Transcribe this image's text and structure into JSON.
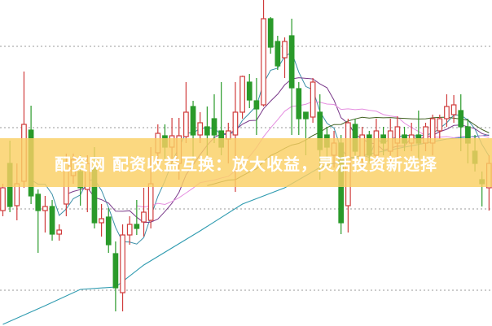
{
  "banner": {
    "text": "配资网 配资收益互换：放大收益，灵活投资新选择"
  },
  "chart_data": {
    "type": "candlestick",
    "title": "",
    "xlabel": "",
    "ylabel": "",
    "ylim": [
      0,
      401
    ],
    "grid": {
      "horizontal": true,
      "style": "dotted",
      "levels": [
        44,
        144,
        244,
        344
      ]
    },
    "colors": {
      "up": "#d03c3c",
      "down": "#2a9a2a",
      "grid": "#999999",
      "banner": "#f9cf64",
      "ma5": "#3a8fa8",
      "ma10": "#7a3a8a",
      "ma20": "#e58ee0",
      "ma30": "#3f5f1f",
      "ma_long": "#2f9bb0"
    },
    "candles": [
      [
        142,
        170,
        175,
        135
      ],
      [
        200,
        147,
        228,
        140
      ],
      [
        148,
        175,
        200,
        130
      ],
      [
        178,
        248,
        313,
        170
      ],
      [
        241,
        160,
        271,
        150
      ],
      [
        162,
        142,
        168,
        90
      ],
      [
        142,
        147,
        160,
        115
      ],
      [
        147,
        113,
        155,
        105
      ],
      [
        113,
        118,
        125,
        105
      ],
      [
        150,
        200,
        212,
        135
      ],
      [
        185,
        205,
        212,
        175
      ],
      [
        190,
        170,
        210,
        148
      ],
      [
        168,
        200,
        210,
        140
      ],
      [
        195,
        127,
        220,
        120
      ],
      [
        127,
        132,
        150,
        110
      ],
      [
        134,
        100,
        145,
        90
      ],
      [
        89,
        47,
        104,
        18
      ],
      [
        41,
        112,
        125,
        18
      ],
      [
        112,
        125,
        135,
        100
      ],
      [
        125,
        120,
        155,
        112
      ],
      [
        128,
        140,
        170,
        110
      ],
      [
        130,
        175,
        220,
        120
      ],
      [
        213,
        237,
        248,
        200
      ],
      [
        234,
        220,
        248,
        205
      ],
      [
        220,
        234,
        256,
        200
      ],
      [
        200,
        234,
        256,
        180
      ],
      [
        233,
        263,
        300,
        225
      ],
      [
        270,
        235,
        277,
        205
      ],
      [
        235,
        250,
        263,
        225
      ],
      [
        245,
        235,
        270,
        210
      ],
      [
        255,
        235,
        285,
        225
      ],
      [
        240,
        220,
        300,
        210
      ],
      [
        230,
        240,
        250,
        200
      ],
      [
        235,
        263,
        300,
        165
      ],
      [
        263,
        307,
        308,
        255
      ],
      [
        300,
        278,
        310,
        268
      ],
      [
        277,
        267,
        305,
        235
      ],
      [
        272,
        378,
        401,
        270
      ],
      [
        378,
        343,
        380,
        335
      ],
      [
        350,
        320,
        357,
        315
      ],
      [
        330,
        350,
        355,
        305
      ],
      [
        357,
        293,
        378,
        235
      ],
      [
        292,
        255,
        300,
        235
      ],
      [
        263,
        255,
        263,
        210
      ],
      [
        257,
        300,
        305,
        250
      ],
      [
        263,
        217,
        285,
        180
      ],
      [
        235,
        220,
        245,
        205
      ],
      [
        210,
        225,
        240,
        195
      ],
      [
        225,
        127,
        235,
        113
      ],
      [
        148,
        250,
        255,
        115
      ],
      [
        248,
        215,
        255,
        200
      ],
      [
        205,
        235,
        245,
        195
      ],
      [
        235,
        210,
        240,
        200
      ],
      [
        210,
        240,
        255,
        195
      ],
      [
        235,
        225,
        245,
        210
      ],
      [
        215,
        240,
        255,
        200
      ],
      [
        225,
        245,
        258,
        205
      ],
      [
        235,
        225,
        245,
        215
      ],
      [
        225,
        235,
        250,
        215
      ],
      [
        235,
        225,
        265,
        205
      ],
      [
        225,
        245,
        250,
        215
      ],
      [
        225,
        255,
        260,
        210
      ],
      [
        240,
        255,
        260,
        230
      ],
      [
        255,
        270,
        285,
        245
      ],
      [
        260,
        272,
        284,
        250
      ],
      [
        265,
        245,
        285,
        215
      ],
      [
        245,
        225,
        255,
        200
      ],
      [
        215,
        200,
        235,
        190
      ],
      [
        180,
        175,
        190,
        147
      ],
      [
        170,
        200,
        210,
        142
      ]
    ],
    "candle_fields": [
      "open",
      "close",
      "high",
      "low"
    ],
    "moving_averages": [
      {
        "period": 5,
        "color_key": "ma5"
      },
      {
        "period": 10,
        "color_key": "ma10"
      },
      {
        "period": 20,
        "color_key": "ma20"
      },
      {
        "period": 30,
        "color_key": "ma30"
      }
    ],
    "long_ma": {
      "index": [
        0,
        6,
        11,
        16,
        20,
        28,
        34,
        40,
        45,
        51,
        57,
        63,
        69
      ],
      "values": [
        2,
        25,
        45,
        48,
        75,
        117,
        150,
        170,
        195,
        210,
        220,
        230,
        235
      ]
    }
  }
}
